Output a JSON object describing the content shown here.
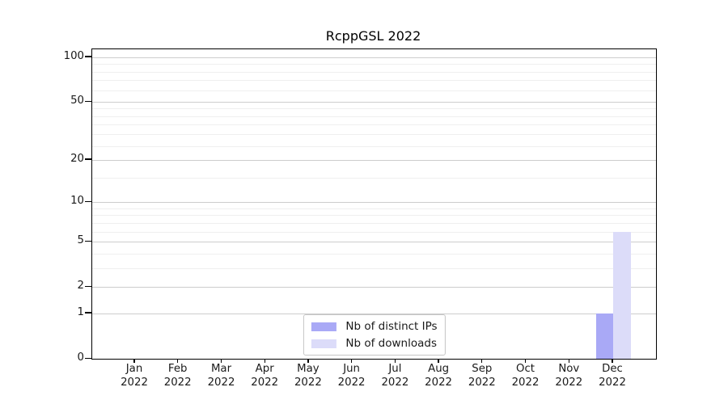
{
  "chart_data": {
    "type": "bar",
    "title": "RcppGSL 2022",
    "categories": [
      "Jan",
      "Feb",
      "Mar",
      "Apr",
      "May",
      "Jun",
      "Jul",
      "Aug",
      "Sep",
      "Oct",
      "Nov",
      "Dec"
    ],
    "year_label": "2022",
    "series": [
      {
        "name": "Nb of distinct IPs",
        "color": "#a9a9f6",
        "values": [
          0,
          0,
          0,
          0,
          0,
          0,
          0,
          0,
          0,
          0,
          0,
          1
        ]
      },
      {
        "name": "Nb of downloads",
        "color": "#dcdcf9",
        "values": [
          0,
          0,
          0,
          0,
          0,
          0,
          0,
          0,
          0,
          0,
          0,
          6
        ]
      }
    ],
    "y_ticks": [
      0,
      1,
      2,
      5,
      10,
      20,
      50,
      100
    ],
    "y_minor_ticks": [
      3,
      4,
      6,
      7,
      8,
      9,
      15,
      25,
      30,
      35,
      40,
      45,
      60,
      70,
      80,
      90
    ],
    "y_scale": "log1p",
    "ylim": [
      0,
      113
    ],
    "xlabel": "",
    "ylabel": "",
    "grid": true,
    "legend_position": "bottom-center"
  },
  "colors": {
    "frame": "#000000",
    "grid_major": "#cdcdcd",
    "grid_minor": "#efefef",
    "text": "#1a1a1a",
    "background": "#ffffff"
  }
}
